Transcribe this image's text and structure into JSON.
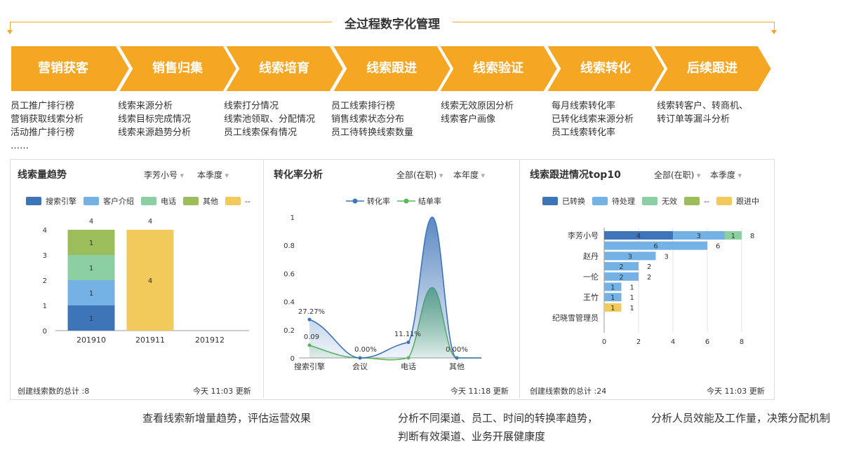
{
  "header": {
    "title": "全过程数字化管理"
  },
  "stages": [
    {
      "label": "营销获客",
      "desc": [
        "员工推广排行榜",
        "营销获取线索分析",
        "活动推广排行榜",
        "……"
      ]
    },
    {
      "label": "销售归集",
      "desc": [
        "线索来源分析",
        "线索目标完成情况",
        "线索来源趋势分析"
      ]
    },
    {
      "label": "线索培育",
      "desc": [
        "线索打分情况",
        "线索池领取、分配情况",
        "员工线索保有情况"
      ]
    },
    {
      "label": "线索跟进",
      "desc": [
        "员工线索排行榜",
        "销售线索状态分布",
        "员工待转换线索数量"
      ]
    },
    {
      "label": "线索验证",
      "desc": [
        "线索无效原因分析",
        "线索客户画像"
      ]
    },
    {
      "label": "线索转化",
      "desc": [
        "每月线索转化率",
        "已转化线索来源分析",
        "员工线索转化率"
      ]
    },
    {
      "label": "后续跟进",
      "desc": [
        "线索转客户、转商机、",
        "转订单等漏斗分析"
      ]
    }
  ],
  "colors": {
    "accent": "#f5a623"
  },
  "panels": {
    "trend": {
      "title": "线索量趋势",
      "filter1": "李芳小号",
      "filter2": "本季度",
      "footer_left": "创建线索数的总计 :8",
      "footer_right": "今天 11:03 更新"
    },
    "conversion": {
      "title": "转化率分析",
      "filter1": "全部(在职)",
      "filter2": "本年度",
      "footer_right": "今天 11:18 更新"
    },
    "followup": {
      "title": "线索跟进情况top10",
      "filter1": "全部(在职)",
      "filter2": "本季度",
      "footer_left": "创建线索数的总计 :24",
      "footer_right": "今天 11:03 更新"
    }
  },
  "captions": {
    "c1": "查看线索新增量趋势，评估运营效果",
    "c2_line1": "分析不同渠道、员工、时间的转换率趋势，",
    "c2_line2": "判断有效渠道、业务开展健康度",
    "c3": "分析人员效能及工作量，决策分配机制"
  },
  "chart_data": [
    {
      "type": "bar",
      "stacked": true,
      "categories": [
        "201910",
        "201911",
        "201912"
      ],
      "series": [
        {
          "name": "搜索引擎",
          "color": "#3e74b8",
          "values": [
            1,
            0,
            0
          ]
        },
        {
          "name": "客户介绍",
          "color": "#74b2e6",
          "values": [
            1,
            0,
            0
          ]
        },
        {
          "name": "电话",
          "color": "#8ccfa3",
          "values": [
            1,
            0,
            0
          ]
        },
        {
          "name": "其他",
          "color": "#9cbe5a",
          "values": [
            1,
            0,
            0
          ]
        },
        {
          "name": "--",
          "color": "#f2c95b",
          "values": [
            0,
            4,
            0
          ]
        }
      ],
      "totals": [
        4,
        4,
        null
      ],
      "ylim": [
        0,
        4
      ],
      "yticks": [
        0,
        1,
        2,
        3,
        4
      ]
    },
    {
      "type": "line",
      "categories": [
        "搜索引擎",
        "会议",
        "电话",
        "其他"
      ],
      "series": [
        {
          "name": "转化率",
          "color": "#3e74b8",
          "values": [
            0.2727,
            0.0,
            0.1111,
            0.0
          ],
          "labels": [
            "27.27%",
            "0.00%",
            "11.11%",
            "0.00%"
          ],
          "peak": 1.0
        },
        {
          "name": "结单率",
          "color": "#5cb85c",
          "values": [
            0.09,
            0.0,
            0.0,
            0.0
          ],
          "labels": [
            "0.09",
            "",
            "",
            ""
          ],
          "peak": 0.5
        }
      ],
      "ylim": [
        0,
        1
      ],
      "yticks": [
        0,
        0.2,
        0.4,
        0.6,
        0.8,
        1
      ]
    },
    {
      "type": "bar",
      "orientation": "horizontal",
      "stacked": true,
      "categories": [
        "李芳小号",
        "",
        "赵丹",
        "",
        "一伦",
        "",
        "王竹",
        "",
        "纪晓雪管理员"
      ],
      "series": [
        {
          "name": "已转换",
          "color": "#3e74b8",
          "values": [
            4,
            0,
            0,
            0,
            0,
            0,
            0,
            0,
            0
          ]
        },
        {
          "name": "待处理",
          "color": "#74b2e6",
          "values": [
            3,
            6,
            3,
            2,
            2,
            1,
            1,
            0,
            0
          ]
        },
        {
          "name": "无效",
          "color": "#8ccfa3",
          "values": [
            1,
            0,
            0,
            0,
            0,
            0,
            0,
            0,
            0
          ]
        },
        {
          "name": "--",
          "color": "#9cbe5a",
          "values": [
            0,
            0,
            0,
            0,
            0,
            0,
            0,
            0,
            0
          ]
        },
        {
          "name": "跟进中",
          "color": "#f2c95b",
          "values": [
            0,
            0,
            0,
            0,
            0,
            0,
            0,
            1,
            0
          ]
        }
      ],
      "totals": [
        8,
        6,
        3,
        2,
        2,
        1,
        1,
        1,
        null
      ],
      "xlim": [
        0,
        8
      ],
      "xticks": [
        0,
        2,
        4,
        6,
        8
      ]
    }
  ]
}
